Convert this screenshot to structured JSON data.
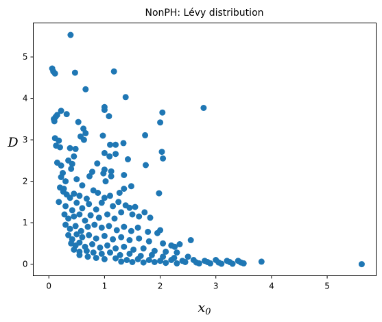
{
  "chart_data": {
    "type": "scatter",
    "title": "NonPH: Lévy distribution",
    "xlabel": "x",
    "xlabel_sub": "0",
    "ylabel": "D",
    "xlim": [
      -0.28,
      5.88
    ],
    "ylim": [
      -0.28,
      5.82
    ],
    "xticks": [
      0,
      1,
      2,
      3,
      4,
      5
    ],
    "yticks": [
      0,
      1,
      2,
      3,
      4,
      5
    ],
    "grid": false,
    "point_color": "#1f77b4",
    "points": [
      [
        0.39,
        5.53
      ],
      [
        0.06,
        4.72
      ],
      [
        0.08,
        4.65
      ],
      [
        0.11,
        4.6
      ],
      [
        0.47,
        4.62
      ],
      [
        1.17,
        4.65
      ],
      [
        0.66,
        4.22
      ],
      [
        1.38,
        4.03
      ],
      [
        0.09,
        3.5
      ],
      [
        0.12,
        3.55
      ],
      [
        0.15,
        3.6
      ],
      [
        0.1,
        3.45
      ],
      [
        0.22,
        3.7
      ],
      [
        0.32,
        3.62
      ],
      [
        1.0,
        3.79
      ],
      [
        1.0,
        3.72
      ],
      [
        2.04,
        3.66
      ],
      [
        2.78,
        3.77
      ],
      [
        1.08,
        3.57
      ],
      [
        0.53,
        3.43
      ],
      [
        0.62,
        3.27
      ],
      [
        0.66,
        3.16
      ],
      [
        0.57,
        3.08
      ],
      [
        0.63,
        3.0
      ],
      [
        2.0,
        3.42
      ],
      [
        1.73,
        3.11
      ],
      [
        0.11,
        3.04
      ],
      [
        0.18,
        2.98
      ],
      [
        0.97,
        3.1
      ],
      [
        1.34,
        2.92
      ],
      [
        1.2,
        2.88
      ],
      [
        1.1,
        2.88
      ],
      [
        0.13,
        2.86
      ],
      [
        0.2,
        2.82
      ],
      [
        0.38,
        2.8
      ],
      [
        0.48,
        2.78
      ],
      [
        2.03,
        2.71
      ],
      [
        1.0,
        2.68
      ],
      [
        1.09,
        2.6
      ],
      [
        1.2,
        2.66
      ],
      [
        0.45,
        2.6
      ],
      [
        0.35,
        2.5
      ],
      [
        0.42,
        2.42
      ],
      [
        1.42,
        2.53
      ],
      [
        2.05,
        2.55
      ],
      [
        1.74,
        2.39
      ],
      [
        0.15,
        2.45
      ],
      [
        0.22,
        2.38
      ],
      [
        0.87,
        2.43
      ],
      [
        0.25,
        2.2
      ],
      [
        0.4,
        2.3
      ],
      [
        0.78,
        2.23
      ],
      [
        1.0,
        2.28
      ],
      [
        0.98,
        2.19
      ],
      [
        1.12,
        2.24
      ],
      [
        0.22,
        2.1
      ],
      [
        0.3,
        2.0
      ],
      [
        0.5,
        2.05
      ],
      [
        0.73,
        2.12
      ],
      [
        1.12,
        2.12
      ],
      [
        0.2,
        1.85
      ],
      [
        0.27,
        1.82
      ],
      [
        0.6,
        1.9
      ],
      [
        1.02,
        2.0
      ],
      [
        1.35,
        2.15
      ],
      [
        1.35,
        1.82
      ],
      [
        1.48,
        1.88
      ],
      [
        0.18,
        1.5
      ],
      [
        0.26,
        1.75
      ],
      [
        0.32,
        1.68
      ],
      [
        0.38,
        1.6
      ],
      [
        0.45,
        1.7
      ],
      [
        0.55,
        1.65
      ],
      [
        0.68,
        1.58
      ],
      [
        0.8,
        1.78
      ],
      [
        0.88,
        1.72
      ],
      [
        1.0,
        1.6
      ],
      [
        1.1,
        1.65
      ],
      [
        1.27,
        1.72
      ],
      [
        1.98,
        1.71
      ],
      [
        0.3,
        1.4
      ],
      [
        0.42,
        1.3
      ],
      [
        0.5,
        1.48
      ],
      [
        0.6,
        1.35
      ],
      [
        0.72,
        1.45
      ],
      [
        0.85,
        1.32
      ],
      [
        0.95,
        1.48
      ],
      [
        1.15,
        1.4
      ],
      [
        1.25,
        1.5
      ],
      [
        1.38,
        1.42
      ],
      [
        1.45,
        1.36
      ],
      [
        1.55,
        1.38
      ],
      [
        0.28,
        1.2
      ],
      [
        0.35,
        1.1
      ],
      [
        0.45,
        1.15
      ],
      [
        0.55,
        1.2
      ],
      [
        0.65,
        1.05
      ],
      [
        0.75,
        1.18
      ],
      [
        0.9,
        1.12
      ],
      [
        1.05,
        1.2
      ],
      [
        1.18,
        1.1
      ],
      [
        1.3,
        1.25
      ],
      [
        1.5,
        1.2
      ],
      [
        1.62,
        1.15
      ],
      [
        1.72,
        1.25
      ],
      [
        1.82,
        1.12
      ],
      [
        0.3,
        0.95
      ],
      [
        0.38,
        0.85
      ],
      [
        0.48,
        0.92
      ],
      [
        0.58,
        0.8
      ],
      [
        0.7,
        0.9
      ],
      [
        0.82,
        0.95
      ],
      [
        0.95,
        0.88
      ],
      [
        1.08,
        0.92
      ],
      [
        1.22,
        0.82
      ],
      [
        1.35,
        0.9
      ],
      [
        1.48,
        0.8
      ],
      [
        1.6,
        0.88
      ],
      [
        1.78,
        0.78
      ],
      [
        1.95,
        0.75
      ],
      [
        2.0,
        0.82
      ],
      [
        0.35,
        0.7
      ],
      [
        0.42,
        0.6
      ],
      [
        0.5,
        0.72
      ],
      [
        0.6,
        0.65
      ],
      [
        0.72,
        0.7
      ],
      [
        0.85,
        0.62
      ],
      [
        1.0,
        0.68
      ],
      [
        1.15,
        0.6
      ],
      [
        1.3,
        0.65
      ],
      [
        1.45,
        0.58
      ],
      [
        1.62,
        0.62
      ],
      [
        1.8,
        0.55
      ],
      [
        2.05,
        0.5
      ],
      [
        2.2,
        0.45
      ],
      [
        2.35,
        0.48
      ],
      [
        2.55,
        0.58
      ],
      [
        2.26,
        0.42
      ],
      [
        0.4,
        0.5
      ],
      [
        0.48,
        0.45
      ],
      [
        0.55,
        0.52
      ],
      [
        0.65,
        0.42
      ],
      [
        0.78,
        0.48
      ],
      [
        0.92,
        0.4
      ],
      [
        1.05,
        0.45
      ],
      [
        1.2,
        0.38
      ],
      [
        1.35,
        0.42
      ],
      [
        1.52,
        0.35
      ],
      [
        1.7,
        0.38
      ],
      [
        1.9,
        0.32
      ],
      [
        2.1,
        0.3
      ],
      [
        2.3,
        0.28
      ],
      [
        0.45,
        0.35
      ],
      [
        0.55,
        0.3
      ],
      [
        0.68,
        0.32
      ],
      [
        0.8,
        0.28
      ],
      [
        0.95,
        0.25
      ],
      [
        1.1,
        0.28
      ],
      [
        1.28,
        0.22
      ],
      [
        1.45,
        0.25
      ],
      [
        1.65,
        0.2
      ],
      [
        1.85,
        0.22
      ],
      [
        2.05,
        0.18
      ],
      [
        2.25,
        0.15
      ],
      [
        2.5,
        0.18
      ],
      [
        0.55,
        0.22
      ],
      [
        0.7,
        0.18
      ],
      [
        0.85,
        0.15
      ],
      [
        1.0,
        0.12
      ],
      [
        1.2,
        0.14
      ],
      [
        1.4,
        0.1
      ],
      [
        1.6,
        0.12
      ],
      [
        1.8,
        0.1
      ],
      [
        2.0,
        0.08
      ],
      [
        2.2,
        0.1
      ],
      [
        2.4,
        0.08
      ],
      [
        2.6,
        0.1
      ],
      [
        2.8,
        0.08
      ],
      [
        3.0,
        0.1
      ],
      [
        3.2,
        0.08
      ],
      [
        2.45,
        0.05
      ],
      [
        2.65,
        0.04
      ],
      [
        2.85,
        0.05
      ],
      [
        3.05,
        0.04
      ],
      [
        3.25,
        0.05
      ],
      [
        3.4,
        0.08
      ],
      [
        3.45,
        0.04
      ],
      [
        3.5,
        0.02
      ],
      [
        3.82,
        0.06
      ],
      [
        5.62,
        0.0
      ],
      [
        1.5,
        0.05
      ],
      [
        1.7,
        0.04
      ],
      [
        1.9,
        0.05
      ],
      [
        2.1,
        0.03
      ],
      [
        2.3,
        0.02
      ],
      [
        2.7,
        0.02
      ],
      [
        2.9,
        0.02
      ],
      [
        3.1,
        0.01
      ],
      [
        3.3,
        0.01
      ],
      [
        1.3,
        0.06
      ]
    ]
  }
}
